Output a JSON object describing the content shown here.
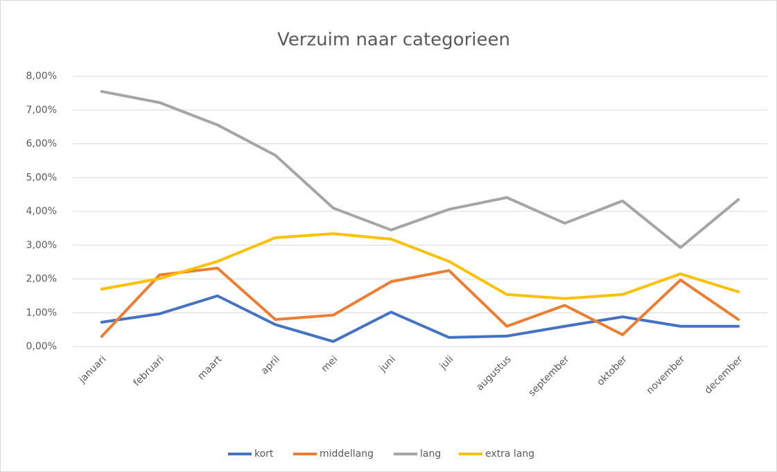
{
  "chart_data": {
    "type": "line",
    "title": "Verzuim naar categorieen",
    "categories": [
      "januari",
      "februari",
      "maart",
      "april",
      "mei",
      "juni",
      "juli",
      "augustus",
      "september",
      "oktober",
      "november",
      "december"
    ],
    "series": [
      {
        "name": "kort",
        "color": "#4472c4",
        "values": [
          0.72,
          0.97,
          1.5,
          0.65,
          0.15,
          1.02,
          0.27,
          0.31,
          0.6,
          0.88,
          0.6,
          0.6
        ]
      },
      {
        "name": "middellang",
        "color": "#ed7d31",
        "values": [
          0.3,
          2.12,
          2.32,
          0.8,
          0.93,
          1.92,
          2.25,
          0.6,
          1.22,
          0.35,
          1.97,
          0.8
        ]
      },
      {
        "name": "lang",
        "color": "#a5a5a5",
        "values": [
          7.55,
          7.22,
          6.56,
          5.66,
          4.1,
          3.45,
          4.06,
          4.41,
          3.65,
          4.31,
          2.93,
          4.35
        ]
      },
      {
        "name": "extra lang",
        "color": "#ffc000",
        "values": [
          1.7,
          2.01,
          2.52,
          3.22,
          3.34,
          3.18,
          2.52,
          1.54,
          1.42,
          1.54,
          2.15,
          1.62
        ]
      }
    ],
    "ylim": [
      0,
      8
    ],
    "yticks": [
      {
        "value": 0,
        "label": "0,00%"
      },
      {
        "value": 1,
        "label": "1,00%"
      },
      {
        "value": 2,
        "label": "2,00%"
      },
      {
        "value": 3,
        "label": "3,00%"
      },
      {
        "value": 4,
        "label": "4,00%"
      },
      {
        "value": 5,
        "label": "5,00%"
      },
      {
        "value": 6,
        "label": "6,00%"
      },
      {
        "value": 7,
        "label": "7,00%"
      },
      {
        "value": 8,
        "label": "8,00%"
      }
    ],
    "grid": true,
    "legend": "bottom"
  }
}
